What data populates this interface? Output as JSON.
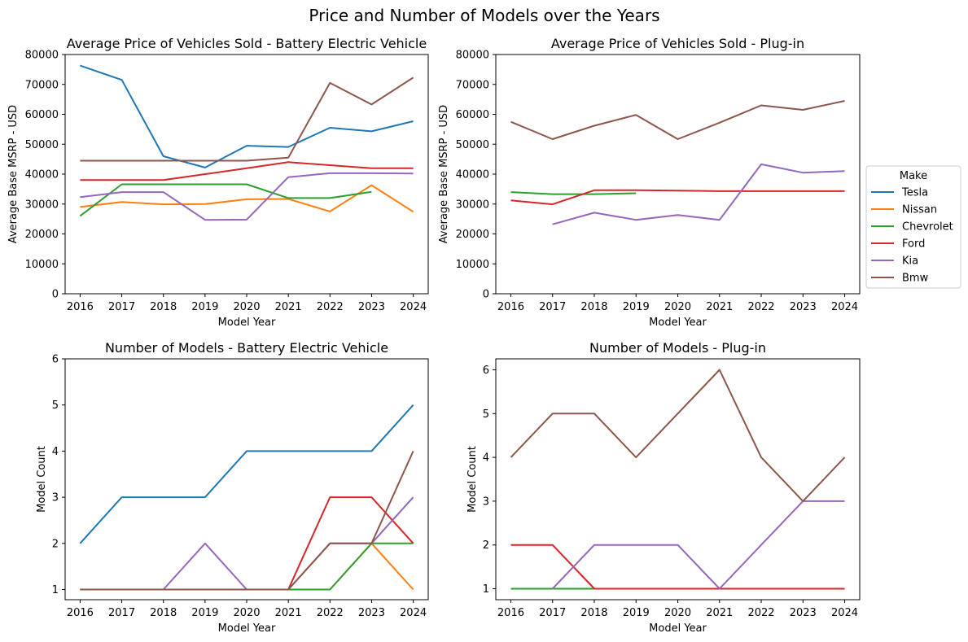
{
  "figure": {
    "suptitle": "Price and Number of Models over the Years"
  },
  "legend": {
    "title": "Make",
    "location": "right-center",
    "entries": [
      {
        "name": "Tesla",
        "color": "#1f77b4"
      },
      {
        "name": "Nissan",
        "color": "#ff7f0e"
      },
      {
        "name": "Chevrolet",
        "color": "#2ca02c"
      },
      {
        "name": "Ford",
        "color": "#d62728"
      },
      {
        "name": "Kia",
        "color": "#9467bd"
      },
      {
        "name": "Bmw",
        "color": "#8c564b"
      }
    ]
  },
  "chart_data": [
    {
      "type": "line",
      "title": "Average Price of Vehicles Sold - Battery Electric Vehicle",
      "xlabel": "Model Year",
      "ylabel": "Average Base MSRP - USD",
      "x": [
        2016,
        2017,
        2018,
        2019,
        2020,
        2021,
        2022,
        2023,
        2024
      ],
      "xticks": [
        "2016",
        "2017",
        "2018",
        "2019",
        "2020",
        "2021",
        "2022",
        "2023",
        "2024"
      ],
      "ylim": [
        0,
        80000
      ],
      "yticks": [
        "0",
        "10000",
        "20000",
        "30000",
        "40000",
        "50000",
        "60000",
        "70000",
        "80000"
      ],
      "grid": false,
      "series": [
        {
          "name": "Tesla",
          "color": "#1f77b4",
          "values": [
            76300,
            71500,
            46000,
            42200,
            49500,
            49100,
            55500,
            54300,
            57700
          ]
        },
        {
          "name": "Nissan",
          "color": "#ff7f0e",
          "values": [
            29000,
            30700,
            29900,
            30000,
            31600,
            31700,
            27500,
            36300,
            27400
          ]
        },
        {
          "name": "Chevrolet",
          "color": "#2ca02c",
          "values": [
            26000,
            36600,
            36600,
            36600,
            36600,
            32000,
            32000,
            34100,
            null
          ]
        },
        {
          "name": "Ford",
          "color": "#d62728",
          "values": [
            38000,
            38000,
            38000,
            40000,
            42000,
            44000,
            43000,
            42000,
            42000
          ]
        },
        {
          "name": "Kia",
          "color": "#9467bd",
          "values": [
            32300,
            34000,
            34000,
            24700,
            24800,
            39000,
            40300,
            40300,
            40200
          ]
        },
        {
          "name": "Bmw",
          "color": "#8c564b",
          "values": [
            44500,
            44500,
            44500,
            44500,
            44500,
            45500,
            70500,
            63300,
            72300
          ]
        }
      ]
    },
    {
      "type": "line",
      "title": "Average Price of Vehicles Sold - Plug-in",
      "xlabel": "Model Year",
      "ylabel": "Average Base MSRP - USD",
      "x": [
        2016,
        2017,
        2018,
        2019,
        2020,
        2021,
        2022,
        2023,
        2024
      ],
      "xticks": [
        "2016",
        "2017",
        "2018",
        "2019",
        "2020",
        "2021",
        "2022",
        "2023",
        "2024"
      ],
      "ylim": [
        0,
        80000
      ],
      "yticks": [
        "0",
        "10000",
        "20000",
        "30000",
        "40000",
        "50000",
        "60000",
        "70000",
        "80000"
      ],
      "grid": false,
      "series": [
        {
          "name": "Chevrolet",
          "color": "#2ca02c",
          "values": [
            34000,
            33300,
            33300,
            33600,
            null,
            null,
            null,
            null,
            null
          ]
        },
        {
          "name": "Ford",
          "color": "#d62728",
          "values": [
            31200,
            29900,
            34600,
            34600,
            34500,
            34300,
            34300,
            34300,
            34300
          ]
        },
        {
          "name": "Kia",
          "color": "#9467bd",
          "values": [
            null,
            23200,
            27100,
            24700,
            26300,
            24700,
            43300,
            40500,
            41000
          ]
        },
        {
          "name": "Bmw",
          "color": "#8c564b",
          "values": [
            57500,
            51700,
            56200,
            59800,
            51700,
            57200,
            63000,
            61500,
            64500
          ]
        }
      ]
    },
    {
      "type": "line",
      "title": "Number of Models - Battery Electric Vehicle",
      "xlabel": "Model Year",
      "ylabel": "Model Count",
      "x": [
        2016,
        2017,
        2018,
        2019,
        2020,
        2021,
        2022,
        2023,
        2024
      ],
      "xticks": [
        "2016",
        "2017",
        "2018",
        "2019",
        "2020",
        "2021",
        "2022",
        "2023",
        "2024"
      ],
      "ylim": [
        0.78,
        6
      ],
      "yticks": [
        "1",
        "2",
        "3",
        "4",
        "5",
        "6"
      ],
      "grid": false,
      "series": [
        {
          "name": "Tesla",
          "color": "#1f77b4",
          "values": [
            2,
            3,
            3,
            3,
            4,
            4,
            4,
            4,
            5
          ]
        },
        {
          "name": "Nissan",
          "color": "#ff7f0e",
          "values": [
            1,
            1,
            1,
            1,
            1,
            1,
            1,
            2,
            1
          ]
        },
        {
          "name": "Chevrolet",
          "color": "#2ca02c",
          "values": [
            1,
            1,
            1,
            1,
            1,
            1,
            1,
            2,
            2
          ]
        },
        {
          "name": "Ford",
          "color": "#d62728",
          "values": [
            1,
            1,
            1,
            1,
            1,
            1,
            3,
            3,
            2
          ]
        },
        {
          "name": "Kia",
          "color": "#9467bd",
          "values": [
            1,
            1,
            1,
            2,
            1,
            1,
            2,
            2,
            3
          ]
        },
        {
          "name": "Bmw",
          "color": "#8c564b",
          "values": [
            1,
            1,
            1,
            1,
            1,
            1,
            2,
            2,
            4
          ]
        }
      ]
    },
    {
      "type": "line",
      "title": "Number of Models - Plug-in",
      "xlabel": "Model Year",
      "ylabel": "Model Count",
      "x": [
        2016,
        2017,
        2018,
        2019,
        2020,
        2021,
        2022,
        2023,
        2024
      ],
      "xticks": [
        "2016",
        "2017",
        "2018",
        "2019",
        "2020",
        "2021",
        "2022",
        "2023",
        "2024"
      ],
      "ylim": [
        0.75,
        6.25
      ],
      "yticks": [
        "1",
        "2",
        "3",
        "4",
        "5",
        "6"
      ],
      "grid": false,
      "series": [
        {
          "name": "Chevrolet",
          "color": "#2ca02c",
          "values": [
            1,
            1,
            1,
            1,
            null,
            null,
            null,
            null,
            null
          ]
        },
        {
          "name": "Ford",
          "color": "#d62728",
          "values": [
            2,
            2,
            1,
            1,
            1,
            1,
            1,
            1,
            1
          ]
        },
        {
          "name": "Kia",
          "color": "#9467bd",
          "values": [
            null,
            1,
            2,
            2,
            2,
            1,
            2,
            3,
            3
          ]
        },
        {
          "name": "Bmw",
          "color": "#8c564b",
          "values": [
            4,
            5,
            5,
            4,
            5,
            6,
            4,
            3,
            4
          ]
        }
      ]
    }
  ]
}
